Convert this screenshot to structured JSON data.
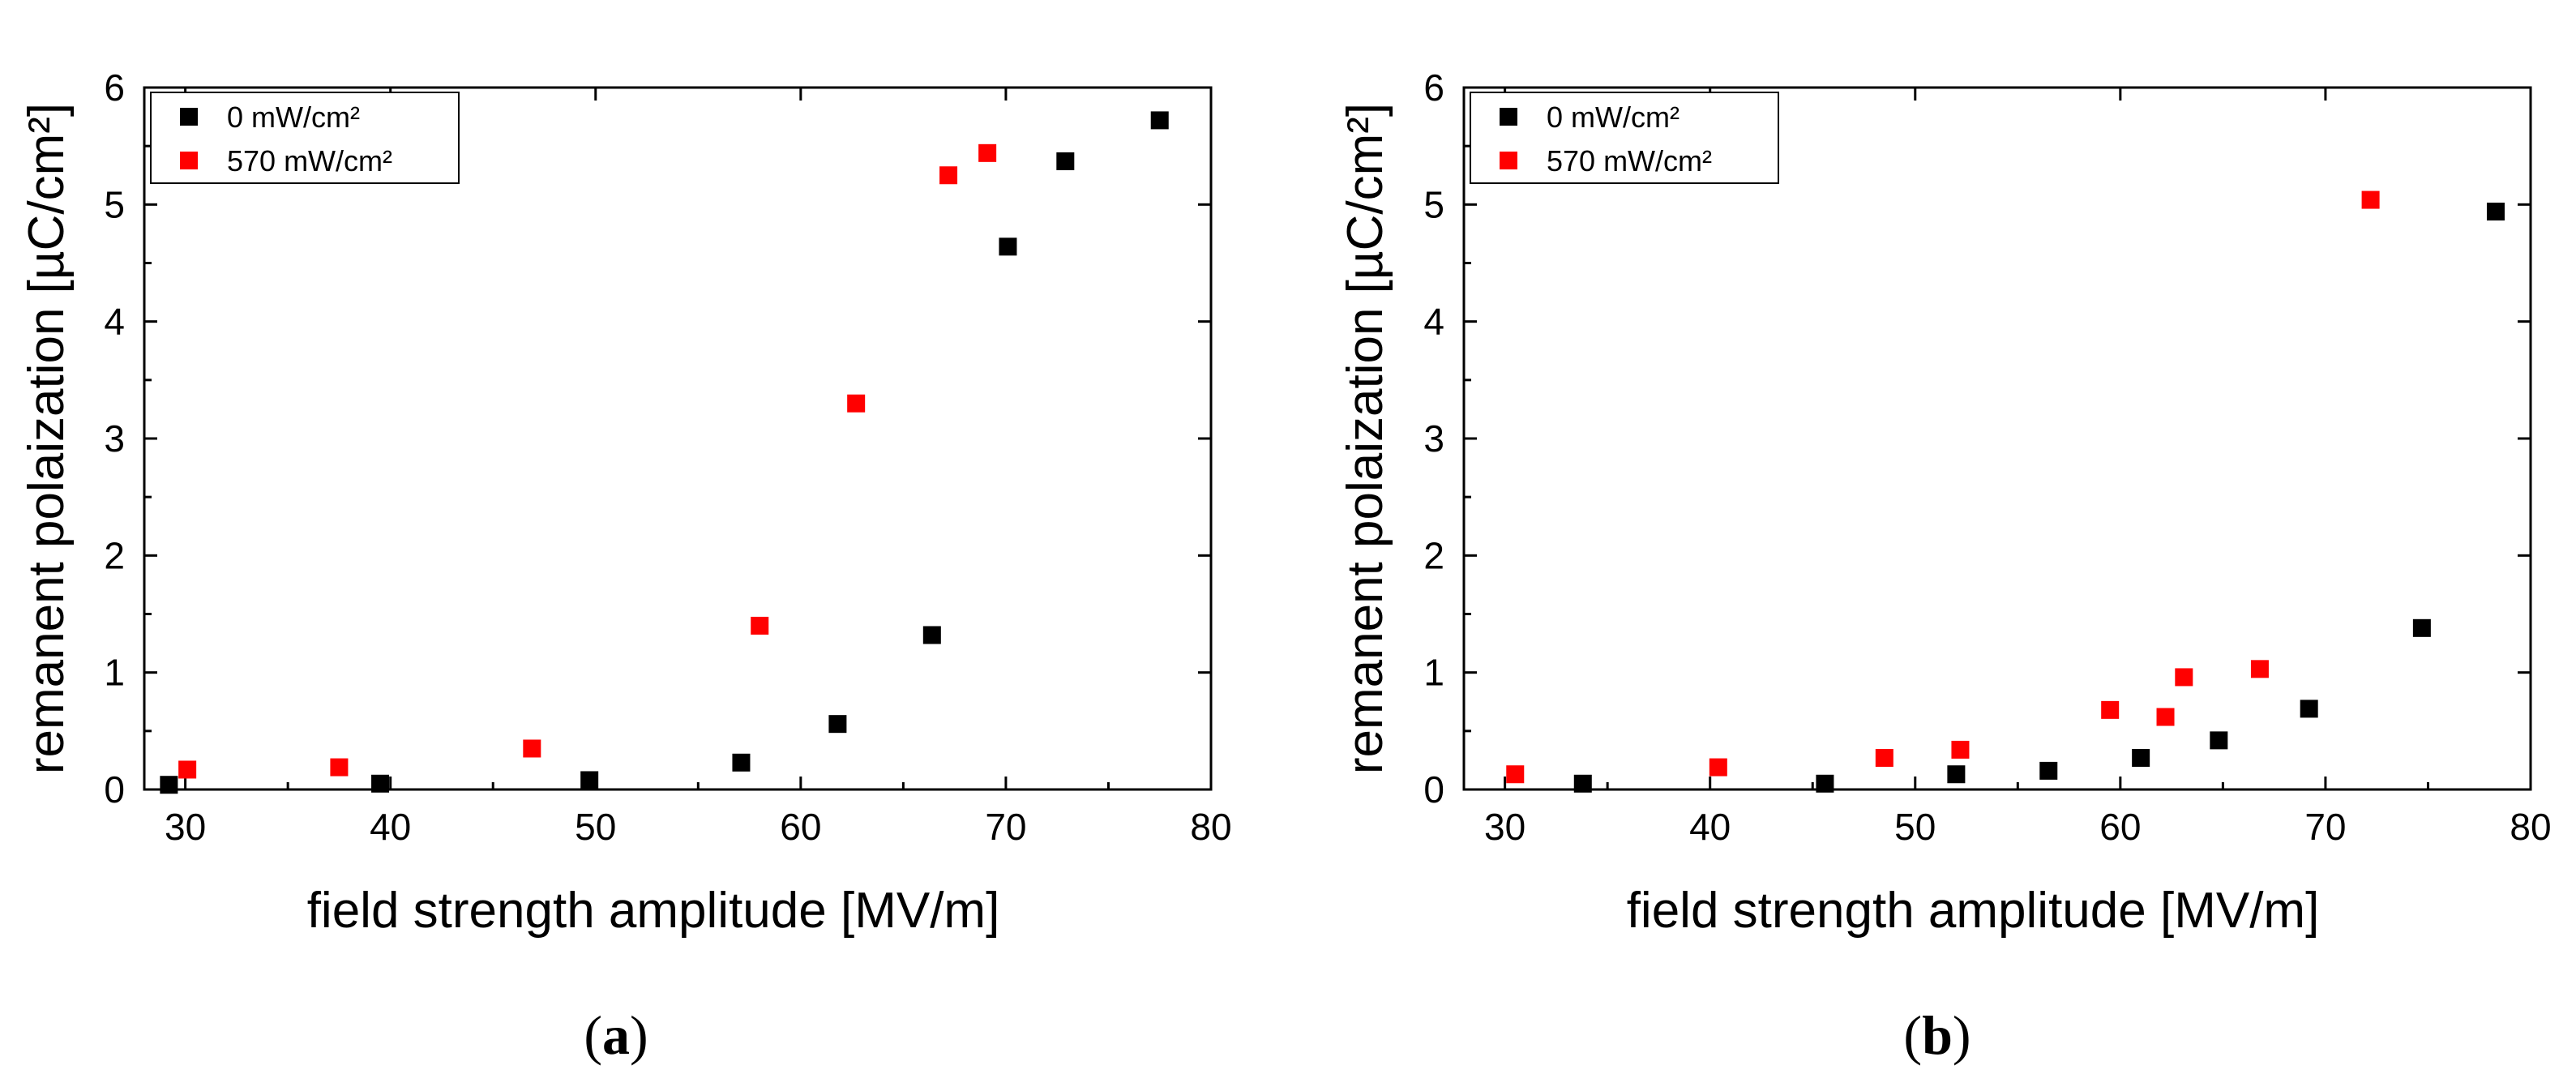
{
  "chart_data": [
    {
      "type": "scatter",
      "panel": "a",
      "caption": "(a)",
      "caption_letter": "a",
      "xlabel": "field strength amplitude [MV/m]",
      "ylabel": "remanent polaization [µC/cm²]",
      "xlim": [
        28,
        80
      ],
      "ylim": [
        0,
        6
      ],
      "xticks": [
        30,
        40,
        50,
        60,
        70,
        80
      ],
      "yticks": [
        0,
        1,
        2,
        3,
        4,
        5,
        6
      ],
      "legend_position": "top-left",
      "series": [
        {
          "name": "0 mW/cm²",
          "color": "#000000",
          "x": [
            29.2,
            39.5,
            49.7,
            57.1,
            61.8,
            66.4,
            70.1,
            72.9,
            77.5
          ],
          "y": [
            0.04,
            0.05,
            0.08,
            0.23,
            0.56,
            1.32,
            4.64,
            5.37,
            5.72
          ]
        },
        {
          "name": "570 mW/cm²",
          "color": "#ff0000",
          "x": [
            30.1,
            37.5,
            46.9,
            58.0,
            62.7,
            67.2,
            69.1
          ],
          "y": [
            0.17,
            0.19,
            0.35,
            1.4,
            3.3,
            5.25,
            5.44
          ]
        }
      ]
    },
    {
      "type": "scatter",
      "panel": "b",
      "caption": "(b)",
      "caption_letter": "b",
      "xlabel": "field strength amplitude [MV/m]",
      "ylabel": "remanent polaization [µC/cm²]",
      "xlim": [
        28,
        80
      ],
      "ylim": [
        0,
        6
      ],
      "xticks": [
        30,
        40,
        50,
        60,
        70,
        80
      ],
      "yticks": [
        0,
        1,
        2,
        3,
        4,
        5,
        6
      ],
      "legend_position": "top-left",
      "series": [
        {
          "name": "0 mW/cm²",
          "color": "#000000",
          "x": [
            33.8,
            45.6,
            52.0,
            56.5,
            61.0,
            64.8,
            69.2,
            74.7,
            78.3
          ],
          "y": [
            0.05,
            0.05,
            0.13,
            0.16,
            0.27,
            0.42,
            0.69,
            1.38,
            4.94
          ]
        },
        {
          "name": "570 mW/cm²",
          "color": "#ff0000",
          "x": [
            30.5,
            40.4,
            48.5,
            52.2,
            59.5,
            62.2,
            63.1,
            66.8,
            72.2
          ],
          "y": [
            0.13,
            0.19,
            0.27,
            0.34,
            0.68,
            0.62,
            0.96,
            1.03,
            5.04
          ]
        }
      ]
    }
  ]
}
